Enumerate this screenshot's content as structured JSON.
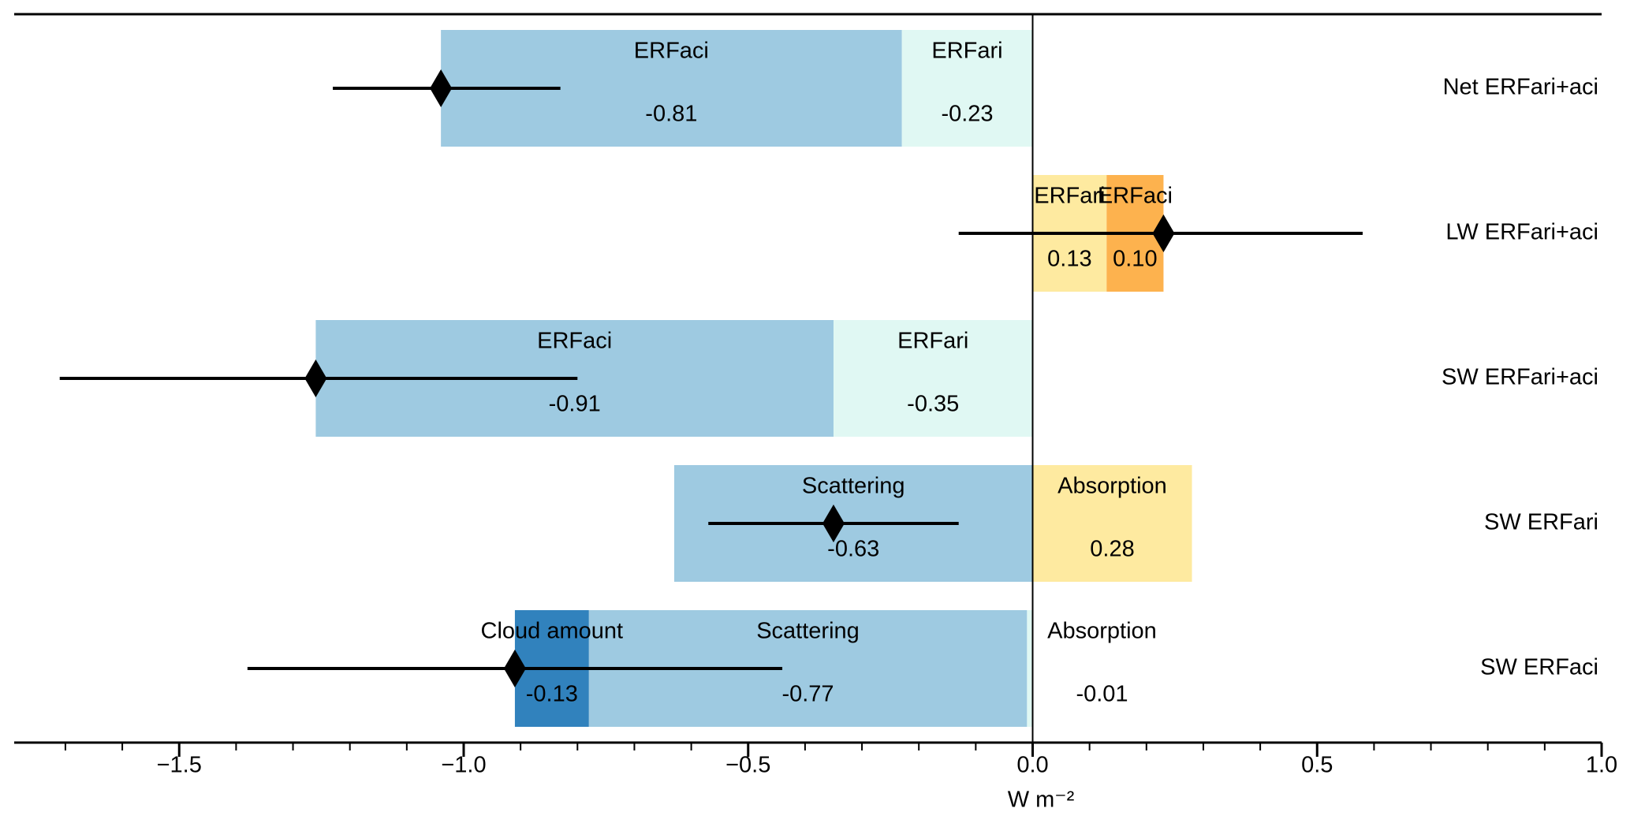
{
  "chart_data": {
    "type": "bar",
    "orientation": "horizontal",
    "stacked": true,
    "x_label": "W m⁻²",
    "xlim": [
      -1.79,
      1.0
    ],
    "xticks": [
      {
        "value": -1.5,
        "label": "−1.5"
      },
      {
        "value": -1.0,
        "label": "−1.0"
      },
      {
        "value": -0.5,
        "label": "−0.5"
      },
      {
        "value": 0.0,
        "label": "0.0"
      },
      {
        "value": 0.5,
        "label": "0.5"
      },
      {
        "value": 1.0,
        "label": "1.0"
      }
    ],
    "xminorticks": [
      -1.7,
      -1.6,
      -1.4,
      -1.3,
      -1.2,
      -1.1,
      -0.9,
      -0.8,
      -0.7,
      -0.6,
      -0.4,
      -0.3,
      -0.2,
      -0.1,
      0.1,
      0.2,
      0.3,
      0.4,
      0.6,
      0.7,
      0.8,
      0.9
    ],
    "rows": [
      {
        "name": "Net ERFari+aci",
        "segments": [
          "ERFari",
          "ERFaci"
        ],
        "values": [
          -0.23,
          -0.81
        ],
        "value_labels": [
          "-0.23",
          "-0.81"
        ],
        "colors": [
          "#e0f8f3",
          "#9ecae1"
        ],
        "estimate": -1.04,
        "range": [
          -1.23,
          -0.83
        ]
      },
      {
        "name": "LW ERFari+aci",
        "segments": [
          "ERFari",
          "ERFaci"
        ],
        "values": [
          0.13,
          0.1
        ],
        "value_labels": [
          "0.13",
          "0.10"
        ],
        "colors": [
          "#feeaa0",
          "#fdb24e"
        ],
        "estimate": 0.23,
        "range": [
          -0.13,
          0.58
        ]
      },
      {
        "name": "SW ERFari+aci",
        "segments": [
          "ERFari",
          "ERFaci"
        ],
        "values": [
          -0.35,
          -0.91
        ],
        "value_labels": [
          "-0.35",
          "-0.91"
        ],
        "colors": [
          "#e0f8f3",
          "#9ecae1"
        ],
        "estimate": -1.26,
        "range": [
          -1.71,
          -0.8
        ]
      },
      {
        "name": "SW ERFari",
        "segments": [
          "Scattering",
          "Absorption"
        ],
        "values": [
          -0.63,
          0.28
        ],
        "value_labels": [
          "-0.63",
          "0.28"
        ],
        "colors": [
          "#9ecae1",
          "#feeaa0"
        ],
        "estimate": -0.35,
        "range": [
          -0.57,
          -0.13
        ]
      },
      {
        "name": "SW ERFaci",
        "segments": [
          "Absorption",
          "Scattering",
          "Cloud amount"
        ],
        "values": [
          -0.01,
          -0.77,
          -0.13
        ],
        "value_labels": [
          "-0.01",
          "-0.77",
          "-0.13"
        ],
        "colors": [
          "#e0f8f3",
          "#9ecae1",
          "#3182bd"
        ],
        "estimate": -0.91,
        "range": [
          -1.38,
          -0.44
        ]
      }
    ]
  }
}
